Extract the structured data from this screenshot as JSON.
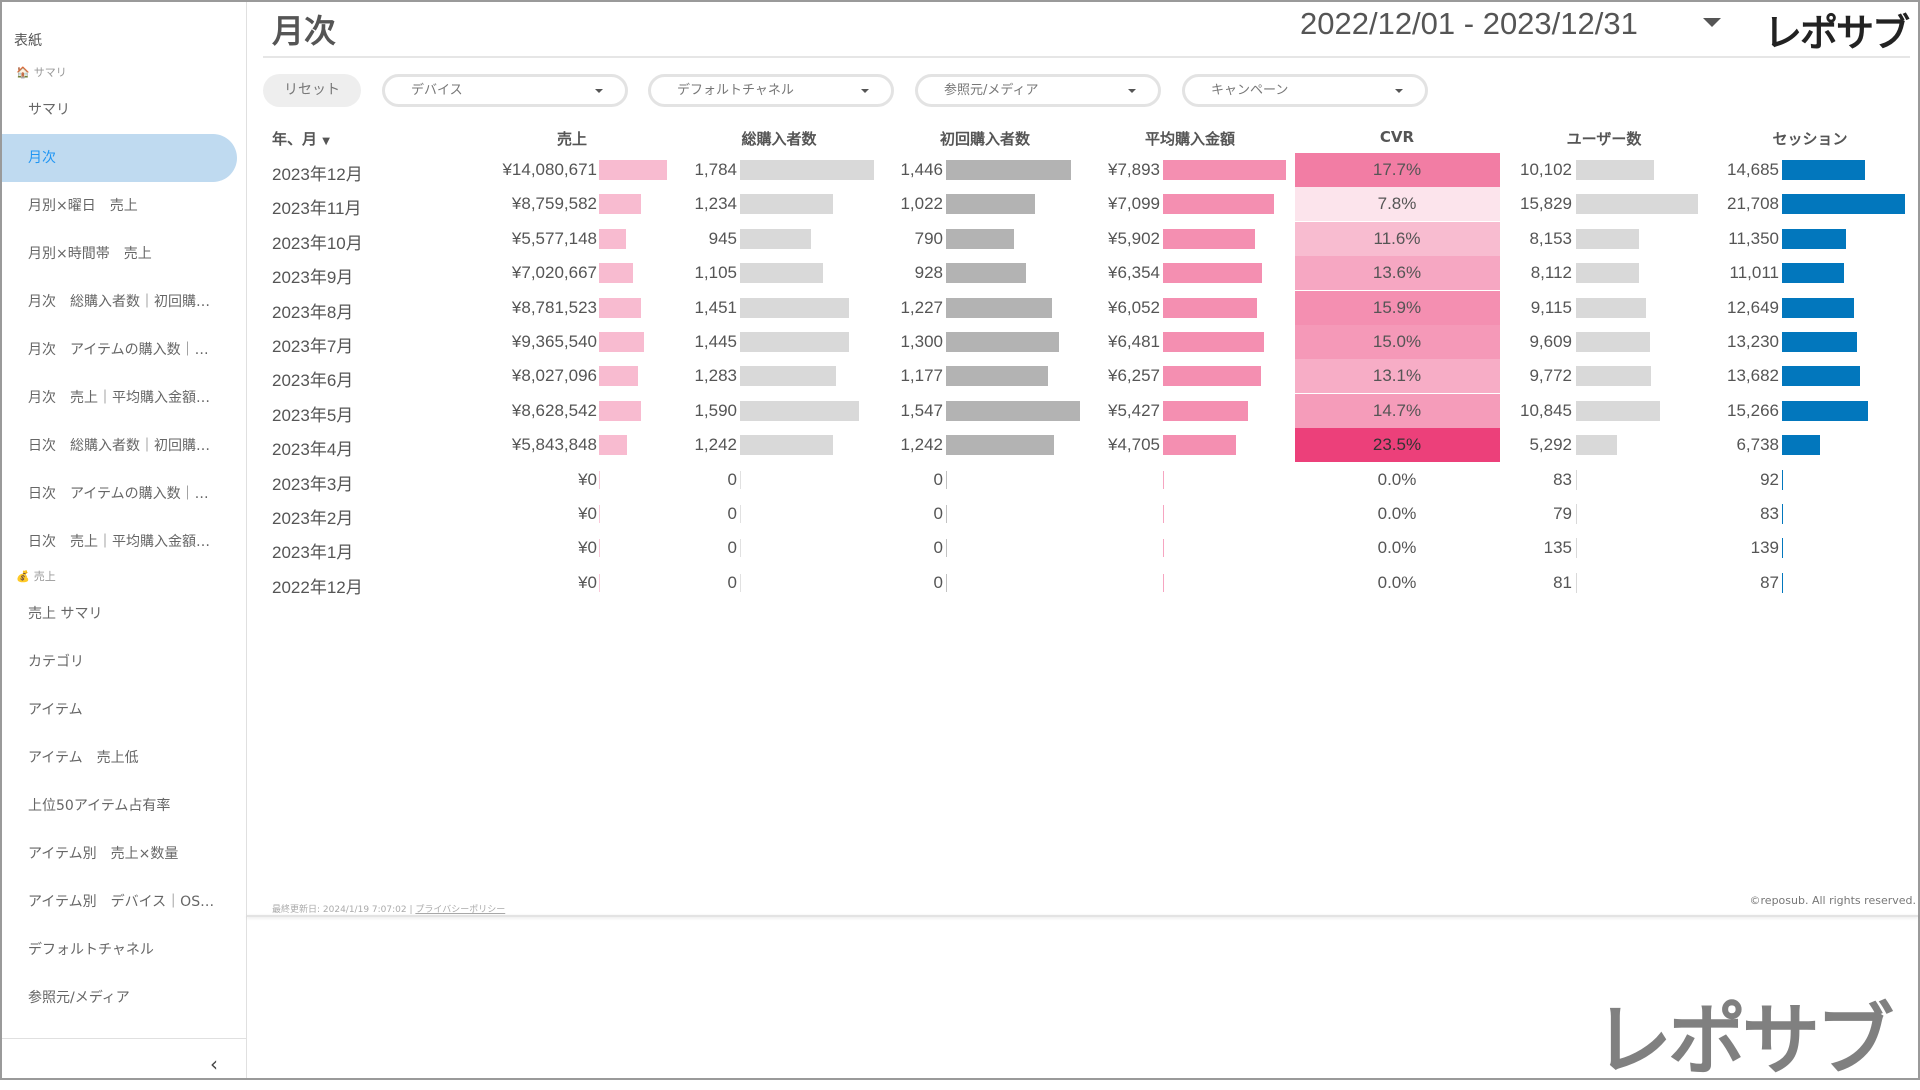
{
  "sidebar": {
    "top": "表紙",
    "sections": [
      {
        "label": "サマリ",
        "icon": "house-icon",
        "items": [
          "サマリ",
          "月次",
          "月別×曜日　売上",
          "月別×時間帯　売上",
          "月次　総購入者数｜初回購…",
          "月次　アイテムの購入数｜…",
          "月次　売上｜平均購入金額…",
          "日次　総購入者数｜初回購…",
          "日次　アイテムの購入数｜…",
          "日次　売上｜平均購入金額…"
        ]
      },
      {
        "label": "売上",
        "icon": "money-bag-icon",
        "items": [
          "売上 サマリ",
          "カテゴリ",
          "アイテム",
          "アイテム　売上低",
          "上位50アイテム占有率",
          "アイテム別　売上×数量",
          "アイテム別　デバイス｜OS…",
          "デフォルトチャネル",
          "参照元/メディア"
        ]
      }
    ],
    "active": "月次",
    "collapse": "‹"
  },
  "header": {
    "title": "月次",
    "date_range": "2022/12/01 - 2023/12/31",
    "logo": "レポサブ"
  },
  "filters": {
    "reset": "リセット",
    "dropdowns": [
      "デバイス",
      "デフォルトチャネル",
      "参照元/メディア",
      "キャンペーン"
    ]
  },
  "table": {
    "headers": [
      "年、月",
      "売上",
      "総購入者数",
      "初回購入者数",
      "平均購入金額",
      "CVR",
      "ユーザー数",
      "セッション"
    ],
    "sort_icon": "▼",
    "rows": [
      {
        "month": "2023年12月",
        "sales": "¥14,080,671",
        "sales_v": 14080671,
        "buyers": "1,784",
        "buyers_v": 1784,
        "first": "1,446",
        "first_v": 1446,
        "avg": "¥7,893",
        "avg_v": 7893,
        "cvr": "17.7%",
        "cvr_v": 17.7,
        "users": "10,102",
        "users_v": 10102,
        "sessions": "14,685",
        "sessions_v": 14685
      },
      {
        "month": "2023年11月",
        "sales": "¥8,759,582",
        "sales_v": 8759582,
        "buyers": "1,234",
        "buyers_v": 1234,
        "first": "1,022",
        "first_v": 1022,
        "avg": "¥7,099",
        "avg_v": 7099,
        "cvr": "7.8%",
        "cvr_v": 7.8,
        "users": "15,829",
        "users_v": 15829,
        "sessions": "21,708",
        "sessions_v": 21708
      },
      {
        "month": "2023年10月",
        "sales": "¥5,577,148",
        "sales_v": 5577148,
        "buyers": "945",
        "buyers_v": 945,
        "first": "790",
        "first_v": 790,
        "avg": "¥5,902",
        "avg_v": 5902,
        "cvr": "11.6%",
        "cvr_v": 11.6,
        "users": "8,153",
        "users_v": 8153,
        "sessions": "11,350",
        "sessions_v": 11350
      },
      {
        "month": "2023年9月",
        "sales": "¥7,020,667",
        "sales_v": 7020667,
        "buyers": "1,105",
        "buyers_v": 1105,
        "first": "928",
        "first_v": 928,
        "avg": "¥6,354",
        "avg_v": 6354,
        "cvr": "13.6%",
        "cvr_v": 13.6,
        "users": "8,112",
        "users_v": 8112,
        "sessions": "11,011",
        "sessions_v": 11011
      },
      {
        "month": "2023年8月",
        "sales": "¥8,781,523",
        "sales_v": 8781523,
        "buyers": "1,451",
        "buyers_v": 1451,
        "first": "1,227",
        "first_v": 1227,
        "avg": "¥6,052",
        "avg_v": 6052,
        "cvr": "15.9%",
        "cvr_v": 15.9,
        "users": "9,115",
        "users_v": 9115,
        "sessions": "12,649",
        "sessions_v": 12649
      },
      {
        "month": "2023年7月",
        "sales": "¥9,365,540",
        "sales_v": 9365540,
        "buyers": "1,445",
        "buyers_v": 1445,
        "first": "1,300",
        "first_v": 1300,
        "avg": "¥6,481",
        "avg_v": 6481,
        "cvr": "15.0%",
        "cvr_v": 15.0,
        "users": "9,609",
        "users_v": 9609,
        "sessions": "13,230",
        "sessions_v": 13230
      },
      {
        "month": "2023年6月",
        "sales": "¥8,027,096",
        "sales_v": 8027096,
        "buyers": "1,283",
        "buyers_v": 1283,
        "first": "1,177",
        "first_v": 1177,
        "avg": "¥6,257",
        "avg_v": 6257,
        "cvr": "13.1%",
        "cvr_v": 13.1,
        "users": "9,772",
        "users_v": 9772,
        "sessions": "13,682",
        "sessions_v": 13682
      },
      {
        "month": "2023年5月",
        "sales": "¥8,628,542",
        "sales_v": 8628542,
        "buyers": "1,590",
        "buyers_v": 1590,
        "first": "1,547",
        "first_v": 1547,
        "avg": "¥5,427",
        "avg_v": 5427,
        "cvr": "14.7%",
        "cvr_v": 14.7,
        "users": "10,845",
        "users_v": 10845,
        "sessions": "15,266",
        "sessions_v": 15266
      },
      {
        "month": "2023年4月",
        "sales": "¥5,843,848",
        "sales_v": 5843848,
        "buyers": "1,242",
        "buyers_v": 1242,
        "first": "1,242",
        "first_v": 1242,
        "avg": "¥4,705",
        "avg_v": 4705,
        "cvr": "23.5%",
        "cvr_v": 23.5,
        "users": "5,292",
        "users_v": 5292,
        "sessions": "6,738",
        "sessions_v": 6738
      },
      {
        "month": "2023年3月",
        "sales": "¥0",
        "sales_v": 0,
        "buyers": "0",
        "buyers_v": 0,
        "first": "0",
        "first_v": 0,
        "avg": "",
        "avg_v": 0,
        "cvr": "0.0%",
        "cvr_v": 0,
        "users": "83",
        "users_v": 83,
        "sessions": "92",
        "sessions_v": 92
      },
      {
        "month": "2023年2月",
        "sales": "¥0",
        "sales_v": 0,
        "buyers": "0",
        "buyers_v": 0,
        "first": "0",
        "first_v": 0,
        "avg": "",
        "avg_v": 0,
        "cvr": "0.0%",
        "cvr_v": 0,
        "users": "79",
        "users_v": 79,
        "sessions": "83",
        "sessions_v": 83
      },
      {
        "month": "2023年1月",
        "sales": "¥0",
        "sales_v": 0,
        "buyers": "0",
        "buyers_v": 0,
        "first": "0",
        "first_v": 0,
        "avg": "",
        "avg_v": 0,
        "cvr": "0.0%",
        "cvr_v": 0,
        "users": "135",
        "users_v": 135,
        "sessions": "139",
        "sessions_v": 139
      },
      {
        "month": "2022年12月",
        "sales": "¥0",
        "sales_v": 0,
        "buyers": "0",
        "buyers_v": 0,
        "first": "0",
        "first_v": 0,
        "avg": "",
        "avg_v": 0,
        "cvr": "0.0%",
        "cvr_v": 0,
        "users": "81",
        "users_v": 81,
        "sessions": "87",
        "sessions_v": 87
      }
    ],
    "colors": {
      "sales": "#f8bbd0",
      "buyers": "#d9d9d9",
      "first": "#b3b3b3",
      "avg": "#f48fb1",
      "users": "#d9d9d9",
      "sessions": "#0277bd",
      "cvr_low": "#fce4ec",
      "cvr_high": "#ec407a"
    }
  },
  "footer": {
    "updated": "最終更新日: 2024/1/19 7:07:02",
    "sep": " | ",
    "privacy": "プライバシーポリシー",
    "copyright": "©reposub. All rights reserved."
  },
  "brand_logo": "レポサブ"
}
